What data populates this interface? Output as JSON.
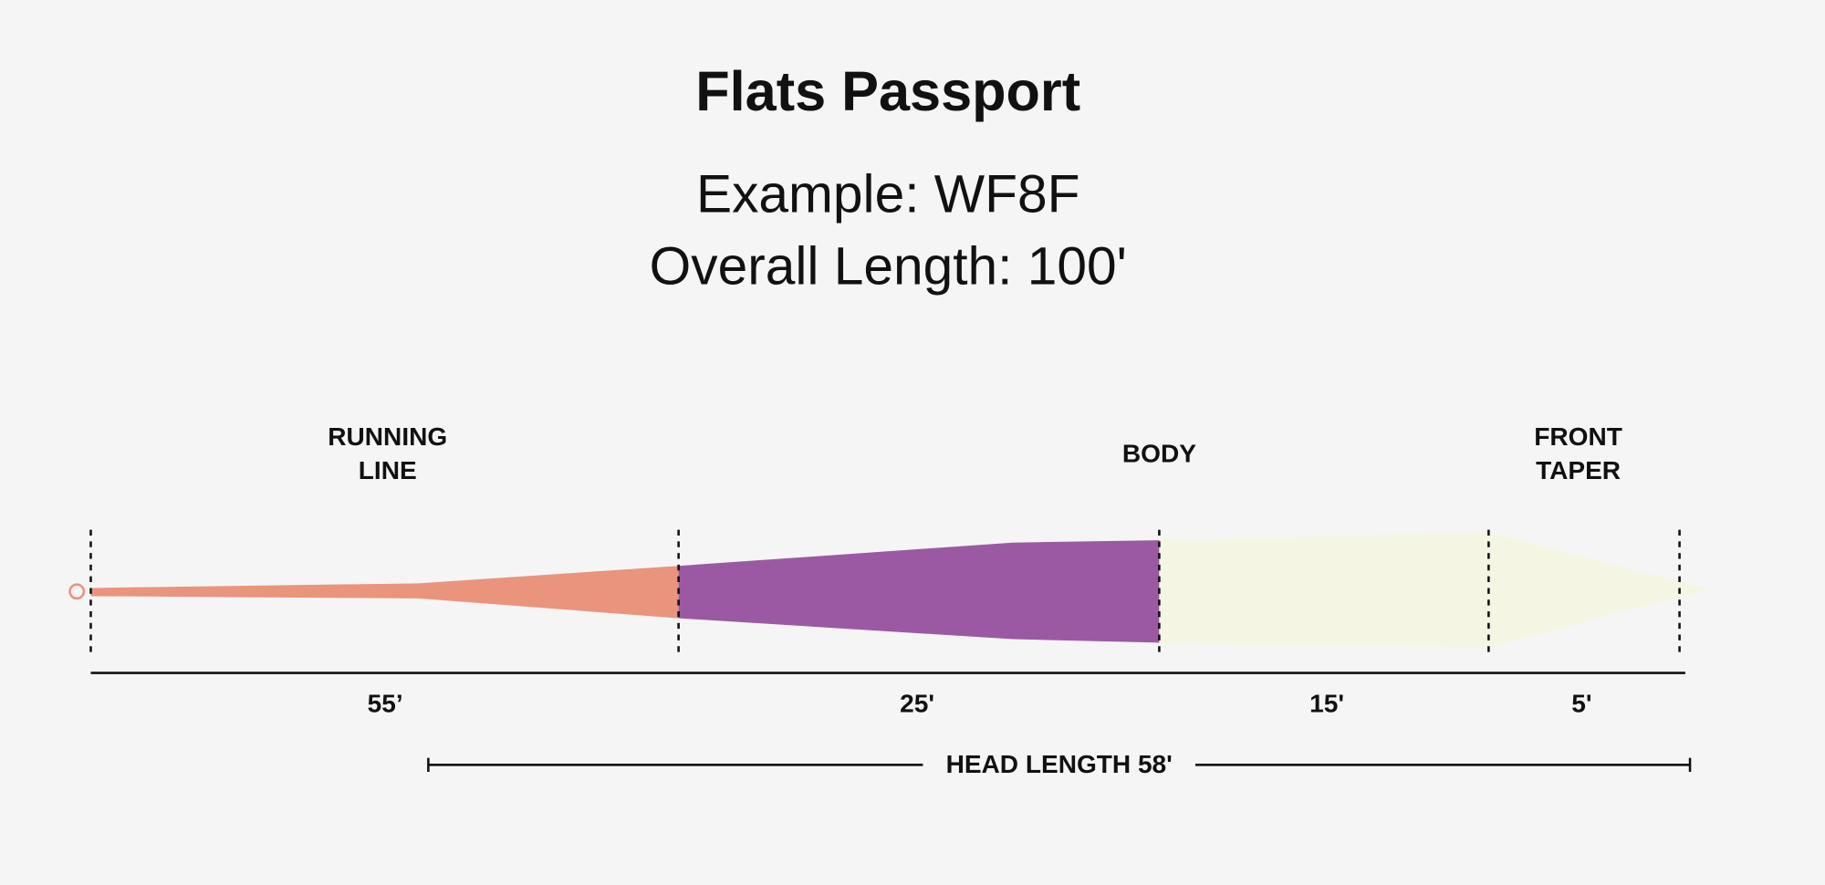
{
  "header": {
    "title": "Flats Passport",
    "example": "Example: WF8F",
    "overall": "Overall Length: 100'"
  },
  "sections": [
    {
      "label_lines": [
        "RUNNING",
        "LINE"
      ],
      "length": "55’"
    },
    {
      "label_lines": [
        "BODY"
      ],
      "length": "25'"
    },
    {
      "label_lines": [],
      "length": "15'"
    },
    {
      "label_lines": [
        "FRONT",
        "TAPER"
      ],
      "length": "5'"
    }
  ],
  "head_length": "HEAD LENGTH 58'"
}
